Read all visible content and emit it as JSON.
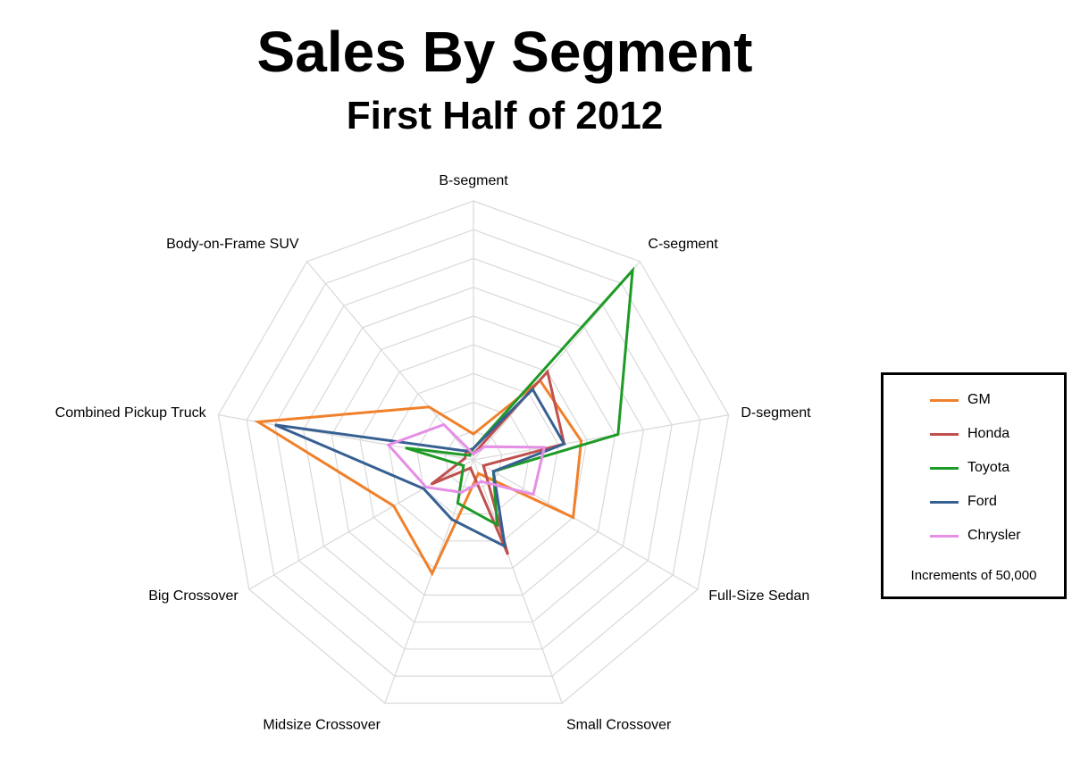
{
  "title": "Sales By Segment",
  "subtitle": "First Half of 2012",
  "chart_data": {
    "type": "radar",
    "title": "Sales By Segment",
    "subtitle": "First Half of 2012",
    "categories": [
      "B-segment",
      "C-segment",
      "D-segment",
      "Full-Size Sedan",
      "Small Crossover",
      "Midsize Crossover",
      "Big Crossover",
      "Combined Pickup Truck",
      "Body-on-Frame SUV"
    ],
    "rlim": [
      0,
      450000
    ],
    "ring_step": 50000,
    "grid": true,
    "legend_position": "right",
    "legend_note": "Increments of 50,000",
    "series": [
      {
        "name": "GM",
        "color": "#f0802a",
        "values": [
          45000,
          180000,
          190000,
          200000,
          25000,
          210000,
          160000,
          380000,
          120000
        ]
      },
      {
        "name": "Honda",
        "color": "#c0504d",
        "values": [
          10000,
          200000,
          160000,
          20000,
          175000,
          15000,
          85000,
          15000,
          20000
        ]
      },
      {
        "name": "Toyota",
        "color": "#1e9a26",
        "values": [
          20000,
          430000,
          255000,
          40000,
          120000,
          80000,
          20000,
          120000,
          10000
        ]
      },
      {
        "name": "Ford",
        "color": "#376092",
        "values": [
          20000,
          160000,
          160000,
          40000,
          160000,
          110000,
          100000,
          350000,
          20000
        ]
      },
      {
        "name": "Chrysler",
        "color": "#e58ee5",
        "values": [
          10000,
          30000,
          125000,
          120000,
          40000,
          60000,
          95000,
          150000,
          80000
        ]
      }
    ]
  }
}
